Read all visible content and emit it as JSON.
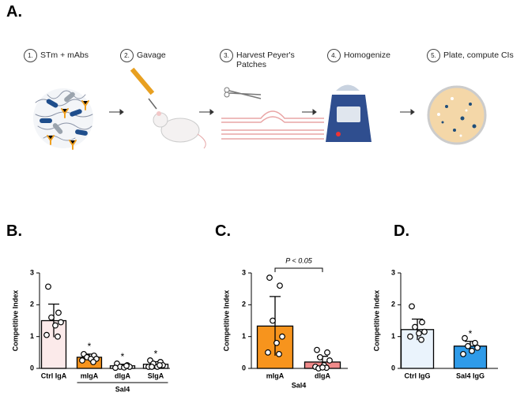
{
  "panel_a": {
    "label": "A.",
    "steps": [
      {
        "number": "1.",
        "text": "STm + mAbs"
      },
      {
        "number": "2.",
        "text": "Gavage"
      },
      {
        "number": "3.",
        "text": "Harvest Peyer's Patches"
      },
      {
        "number": "4.",
        "text": "Homogenize"
      },
      {
        "number": "5.",
        "text": "Plate, compute CIs"
      }
    ]
  },
  "chart_data": [
    {
      "type": "bar",
      "panel_label": "B.",
      "y_label": "Competitive Index",
      "categories": [
        "Ctrl IgA",
        "mIgA",
        "dIgA",
        "SIgA"
      ],
      "group_label": "Sal4",
      "values": [
        1.5,
        0.35,
        0.08,
        0.13
      ],
      "errors": [
        0.52,
        0.1,
        0.05,
        0.08
      ],
      "colors": [
        "#fbeaea",
        "#f7941d",
        "#ffffff",
        "#ffffff"
      ],
      "points": [
        [
          2.57,
          1.75,
          1.6,
          1.45,
          1.35,
          1.05,
          1.0
        ],
        [
          0.45,
          0.4,
          0.35,
          0.3,
          0.3,
          0.25,
          0.2
        ],
        [
          0.15,
          0.1,
          0.05,
          0.05,
          0.03,
          0.02,
          0.08
        ],
        [
          0.25,
          0.2,
          0.15,
          0.1,
          0.05,
          0.05,
          0.1,
          0.05
        ]
      ],
      "star_labels": [
        null,
        "*",
        "*",
        "*"
      ],
      "ylim": [
        0,
        3
      ],
      "yticks": [
        0,
        1,
        2,
        3
      ]
    },
    {
      "type": "bar",
      "panel_label": "C.",
      "y_label": "Competitive Index",
      "categories": [
        "mIgA",
        "dIgA"
      ],
      "group_label": "Sal4",
      "annotation": "P < 0.05",
      "values": [
        1.33,
        0.2
      ],
      "errors": [
        0.93,
        0.18
      ],
      "colors": [
        "#f7941d",
        "#f08a8a"
      ],
      "points": [
        [
          2.85,
          2.6,
          1.5,
          1.0,
          0.8,
          0.5,
          0.45
        ],
        [
          0.58,
          0.5,
          0.35,
          0.25,
          0.1,
          0.05,
          0.02,
          0.0,
          0.03
        ]
      ],
      "ylim": [
        0,
        3
      ],
      "yticks": [
        0,
        1,
        2,
        3
      ]
    },
    {
      "type": "bar",
      "panel_label": "D.",
      "y_label": "Competitive Index",
      "categories": [
        "Ctrl IgG",
        "Sal4 IgG"
      ],
      "values": [
        1.22,
        0.7
      ],
      "errors": [
        0.33,
        0.15
      ],
      "colors": [
        "#eaf3fc",
        "#2f9be9"
      ],
      "points": [
        [
          1.95,
          1.45,
          1.3,
          1.15,
          1.1,
          1.0,
          0.9
        ],
        [
          0.95,
          0.8,
          0.7,
          0.65,
          0.55,
          0.45
        ]
      ],
      "star_labels": [
        null,
        "*"
      ],
      "ylim": [
        0,
        3
      ],
      "yticks": [
        0,
        1,
        2,
        3
      ]
    }
  ]
}
